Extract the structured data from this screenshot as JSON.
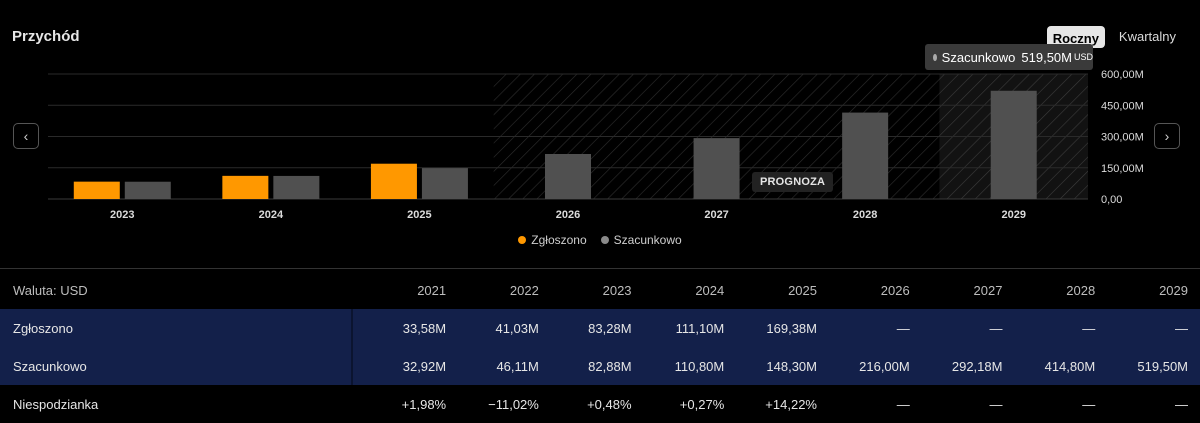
{
  "header": {
    "title": "Przychód",
    "tabs": [
      "Roczny",
      "Kwartalny"
    ],
    "active_tab": "Roczny"
  },
  "tooltip": {
    "series": "Szacunkowo",
    "value": "519,50M",
    "unit": "USD"
  },
  "forecast_label": "PROGNOZA",
  "icons": {
    "prev": "chevron-left-icon",
    "next": "chevron-right-icon"
  },
  "colors": {
    "reported": "#ff9800",
    "estimated": "#505050"
  },
  "chart_data": {
    "type": "bar",
    "categories": [
      "2023",
      "2024",
      "2025",
      "2026",
      "2027",
      "2028",
      "2029"
    ],
    "series": [
      {
        "name": "Zgłoszono",
        "values": [
          83.28,
          111.1,
          169.38,
          null,
          null,
          null,
          null
        ]
      },
      {
        "name": "Szacunkowo",
        "values": [
          82.88,
          110.8,
          148.3,
          216.0,
          292.18,
          414.8,
          519.5
        ]
      }
    ],
    "y_ticks": [
      "0,00",
      "150,00M",
      "300,00M",
      "450,00M",
      "600,00M"
    ],
    "ylim": [
      0,
      600
    ],
    "forecast_from": "2026",
    "legend": "bottom"
  },
  "table": {
    "currency_label": "Waluta: USD",
    "years": [
      "2021",
      "2022",
      "2023",
      "2024",
      "2025",
      "2026",
      "2027",
      "2028",
      "2029"
    ],
    "rows": [
      {
        "label": "Zgłoszono",
        "values": [
          "33,58M",
          "41,03M",
          "83,28M",
          "111,10M",
          "169,38M",
          "—",
          "—",
          "—",
          "—"
        ]
      },
      {
        "label": "Szacunkowo",
        "values": [
          "32,92M",
          "46,11M",
          "82,88M",
          "110,80M",
          "148,30M",
          "216,00M",
          "292,18M",
          "414,80M",
          "519,50M"
        ]
      },
      {
        "label": "Niespodzianka",
        "values": [
          "+1,98%",
          "−11,02%",
          "+0,48%",
          "+0,27%",
          "+14,22%",
          "—",
          "—",
          "—",
          "—"
        ]
      }
    ]
  }
}
